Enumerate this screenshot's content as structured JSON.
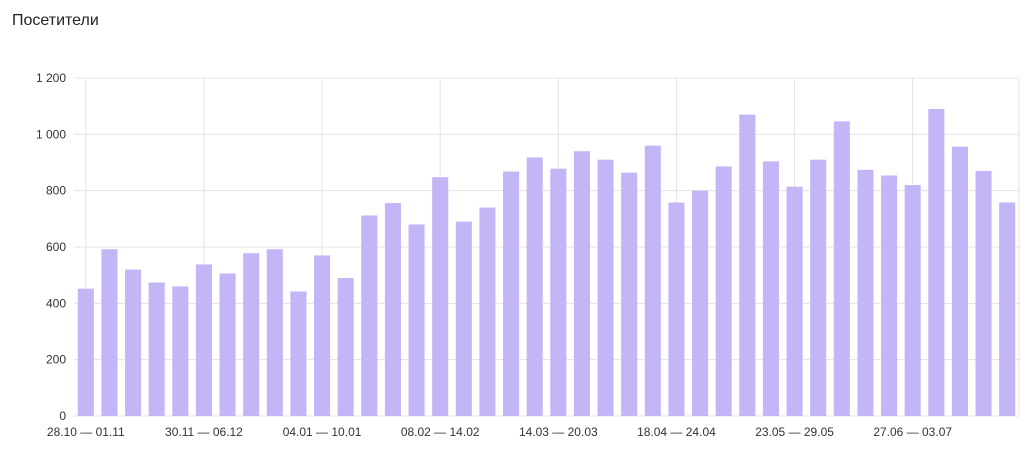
{
  "header": {
    "title": "Посетители"
  },
  "chart_data": {
    "type": "bar",
    "title": "Посетители",
    "xlabel": "",
    "ylabel": "",
    "ylim": [
      0,
      1200
    ],
    "yticks": [
      0,
      200,
      400,
      600,
      800,
      1000,
      1200
    ],
    "ytick_labels": [
      "0",
      "200",
      "400",
      "600",
      "800",
      "1 000",
      "1 200"
    ],
    "grid": true,
    "bar_color": "#c4b5f7",
    "x_tick_labels": [
      {
        "index": 0,
        "label": "28.10 — 01.11"
      },
      {
        "index": 5,
        "label": "30.11 — 06.12"
      },
      {
        "index": 10,
        "label": "04.01 — 10.01"
      },
      {
        "index": 15,
        "label": "08.02 — 14.02"
      },
      {
        "index": 20,
        "label": "14.03 — 20.03"
      },
      {
        "index": 25,
        "label": "18.04 — 24.04"
      },
      {
        "index": 30,
        "label": "23.05 — 29.05"
      },
      {
        "index": 35,
        "label": "27.06 — 03.07"
      }
    ],
    "values": [
      452,
      592,
      520,
      474,
      460,
      538,
      506,
      578,
      592,
      442,
      570,
      490,
      712,
      756,
      680,
      848,
      690,
      740,
      868,
      918,
      878,
      940,
      910,
      864,
      960,
      758,
      800,
      886,
      1070,
      904,
      814,
      910,
      1046,
      874,
      854,
      820,
      1090,
      956,
      870,
      758
    ]
  }
}
